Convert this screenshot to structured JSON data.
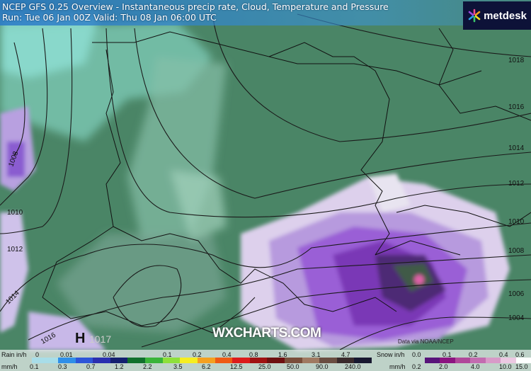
{
  "header": {
    "title_line1": "NCEP GFS 0.25 Overview - Instantaneous precip rate, Cloud, Temperature and Pressure",
    "title_line2": "Run: Tue 06 Jan 00Z Valid: Thu 08 Jan 06:00 UTC"
  },
  "logo": {
    "text": "metdesk",
    "icon": "asterisk-flower-icon"
  },
  "watermark": "WXCHARTS.COM",
  "credit": "Data via NOAA/NCEP",
  "pressure": {
    "high_marker": "H",
    "isobar_labels": [
      "1018",
      "1016",
      "1014",
      "1012",
      "1010",
      "1008",
      "1006",
      "1004",
      "1008",
      "1010",
      "1012",
      "1014",
      "1016",
      "1017"
    ]
  },
  "legend": {
    "rain": {
      "label_in": "Rain in/h",
      "label_mm": "mm/h",
      "in_ticks": [
        "0",
        "0.01",
        "0.04",
        "0.1",
        "0.2",
        "0.4",
        "0.8",
        "1.6",
        "3.1",
        "4.7"
      ],
      "mm_ticks": [
        "0.1",
        "0.3",
        "0.7",
        "1.2",
        "2.2",
        "3.5",
        "6.2",
        "12.5",
        "25.0",
        "50.0",
        "90.0",
        "240.0"
      ],
      "colors": [
        "#a8dde8",
        "#2f8fe8",
        "#2d55d8",
        "#2a2fb0",
        "#142070",
        "#11702c",
        "#3ab43a",
        "#8ee03a",
        "#f6ee20",
        "#f4a020",
        "#ee5a14",
        "#dc1c1c",
        "#a01212",
        "#6e1010",
        "#7a4e3a",
        "#a07a62",
        "#6a4e42",
        "#3a2a2c",
        "#181830"
      ]
    },
    "snow": {
      "label_in": "Snow in/h",
      "label_mm": "mm/h",
      "in_ticks": [
        "0.0",
        "0.1",
        "0.2",
        "0.4",
        "0.6"
      ],
      "mm_ticks": [
        "0.2",
        "2.0",
        "4.0",
        "10.0",
        "15.0"
      ],
      "colors": [
        "#e6d6f0",
        "#58147a",
        "#8c1480",
        "#b0489a",
        "#c36cb0",
        "#d89ac8",
        "#ecc8e2",
        "#ffffff"
      ]
    }
  }
}
